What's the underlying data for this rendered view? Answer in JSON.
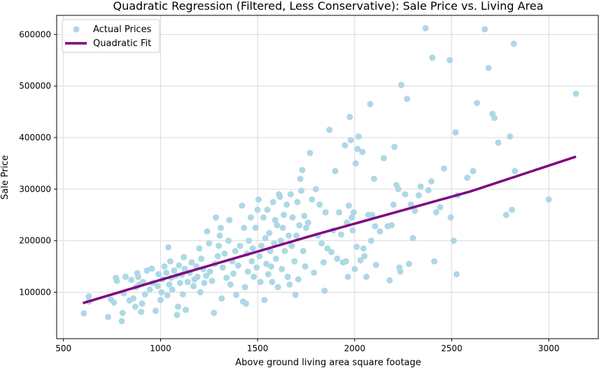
{
  "chart_data": {
    "type": "scatter",
    "title": "Quadratic Regression (Filtered, Less Conservative): Sale Price vs. Living Area",
    "xlabel": "Above ground living area square footage",
    "ylabel": "Sale Price",
    "xlim": [
      465,
      3255
    ],
    "ylim": [
      10000,
      637000
    ],
    "x_ticks": [
      500,
      1000,
      1500,
      2000,
      2500,
      3000
    ],
    "y_ticks": [
      100000,
      200000,
      300000,
      400000,
      500000,
      600000
    ],
    "x_tick_labels": [
      "500",
      "1000",
      "1500",
      "2000",
      "2500",
      "3000"
    ],
    "y_tick_labels": [
      "100000",
      "200000",
      "300000",
      "400000",
      "500000",
      "600000"
    ],
    "grid": true,
    "legend_position": "top-left",
    "series": [
      {
        "name": "Actual Prices",
        "kind": "scatter",
        "color": "#add8e6",
        "points": [
          [
            605,
            59000
          ],
          [
            630,
            92000
          ],
          [
            632,
            82000
          ],
          [
            730,
            52000
          ],
          [
            745,
            86000
          ],
          [
            760,
            80000
          ],
          [
            770,
            128000
          ],
          [
            775,
            122000
          ],
          [
            800,
            44000
          ],
          [
            805,
            60000
          ],
          [
            810,
            98000
          ],
          [
            820,
            130000
          ],
          [
            840,
            84000
          ],
          [
            850,
            124000
          ],
          [
            860,
            88000
          ],
          [
            870,
            72000
          ],
          [
            875,
            110000
          ],
          [
            880,
            137000
          ],
          [
            885,
            130000
          ],
          [
            890,
            115000
          ],
          [
            900,
            62000
          ],
          [
            905,
            78000
          ],
          [
            910,
            120000
          ],
          [
            920,
            96000
          ],
          [
            930,
            142000
          ],
          [
            945,
            105000
          ],
          [
            955,
            146000
          ],
          [
            960,
            118000
          ],
          [
            975,
            64000
          ],
          [
            985,
            112000
          ],
          [
            990,
            135000
          ],
          [
            1000,
            85000
          ],
          [
            1005,
            100000
          ],
          [
            1010,
            125000
          ],
          [
            1020,
            150000
          ],
          [
            1030,
            138000
          ],
          [
            1035,
            94000
          ],
          [
            1040,
            187000
          ],
          [
            1045,
            115000
          ],
          [
            1050,
            160000
          ],
          [
            1055,
            128000
          ],
          [
            1060,
            105000
          ],
          [
            1070,
            142000
          ],
          [
            1080,
            132000
          ],
          [
            1085,
            56000
          ],
          [
            1090,
            72000
          ],
          [
            1095,
            152000
          ],
          [
            1100,
            118000
          ],
          [
            1110,
            134000
          ],
          [
            1115,
            96000
          ],
          [
            1120,
            168000
          ],
          [
            1125,
            145000
          ],
          [
            1130,
            66000
          ],
          [
            1140,
            120000
          ],
          [
            1150,
            138000
          ],
          [
            1160,
            158000
          ],
          [
            1170,
            112000
          ],
          [
            1175,
            125000
          ],
          [
            1185,
            150000
          ],
          [
            1190,
            130000
          ],
          [
            1200,
            185000
          ],
          [
            1205,
            100000
          ],
          [
            1210,
            165000
          ],
          [
            1220,
            145000
          ],
          [
            1225,
            118000
          ],
          [
            1235,
            132000
          ],
          [
            1240,
            218000
          ],
          [
            1250,
            195000
          ],
          [
            1255,
            140000
          ],
          [
            1265,
            122000
          ],
          [
            1275,
            60000
          ],
          [
            1280,
            155000
          ],
          [
            1285,
            245000
          ],
          [
            1295,
            170000
          ],
          [
            1300,
            190000
          ],
          [
            1305,
            210000
          ],
          [
            1310,
            225000
          ],
          [
            1315,
            88000
          ],
          [
            1320,
            148000
          ],
          [
            1330,
            175000
          ],
          [
            1340,
            128000
          ],
          [
            1350,
            200000
          ],
          [
            1355,
            240000
          ],
          [
            1360,
            115000
          ],
          [
            1370,
            160000
          ],
          [
            1375,
            136000
          ],
          [
            1385,
            180000
          ],
          [
            1390,
            95000
          ],
          [
            1400,
            152000
          ],
          [
            1410,
            190000
          ],
          [
            1420,
            268000
          ],
          [
            1425,
            82000
          ],
          [
            1430,
            225000
          ],
          [
            1435,
            110000
          ],
          [
            1440,
            78000
          ],
          [
            1445,
            175000
          ],
          [
            1450,
            140000
          ],
          [
            1455,
            200000
          ],
          [
            1465,
            245000
          ],
          [
            1470,
            160000
          ],
          [
            1475,
            185000
          ],
          [
            1480,
            130000
          ],
          [
            1490,
            225000
          ],
          [
            1495,
            148000
          ],
          [
            1500,
            260000
          ],
          [
            1505,
            280000
          ],
          [
            1510,
            170000
          ],
          [
            1515,
            120000
          ],
          [
            1520,
            190000
          ],
          [
            1530,
            245000
          ],
          [
            1535,
            85000
          ],
          [
            1540,
            205000
          ],
          [
            1545,
            155000
          ],
          [
            1550,
            260000
          ],
          [
            1555,
            135000
          ],
          [
            1560,
            215000
          ],
          [
            1565,
            180000
          ],
          [
            1570,
            150000
          ],
          [
            1575,
            120000
          ],
          [
            1580,
            275000
          ],
          [
            1585,
            195000
          ],
          [
            1590,
            240000
          ],
          [
            1595,
            165000
          ],
          [
            1600,
            230000
          ],
          [
            1605,
            110000
          ],
          [
            1610,
            290000
          ],
          [
            1615,
            285000
          ],
          [
            1620,
            200000
          ],
          [
            1625,
            145000
          ],
          [
            1630,
            225000
          ],
          [
            1635,
            250000
          ],
          [
            1640,
            180000
          ],
          [
            1650,
            270000
          ],
          [
            1655,
            130000
          ],
          [
            1660,
            210000
          ],
          [
            1665,
            115000
          ],
          [
            1670,
            290000
          ],
          [
            1675,
            190000
          ],
          [
            1680,
            245000
          ],
          [
            1690,
            160000
          ],
          [
            1695,
            95000
          ],
          [
            1700,
            210000
          ],
          [
            1705,
            275000
          ],
          [
            1710,
            125000
          ],
          [
            1715,
            230000
          ],
          [
            1720,
            320000
          ],
          [
            1725,
            297000
          ],
          [
            1730,
            337000
          ],
          [
            1735,
            180000
          ],
          [
            1740,
            248000
          ],
          [
            1745,
            150000
          ],
          [
            1750,
            225000
          ],
          [
            1760,
            235000
          ],
          [
            1770,
            370000
          ],
          [
            1780,
            280000
          ],
          [
            1790,
            138000
          ],
          [
            1800,
            300000
          ],
          [
            1810,
            210000
          ],
          [
            1820,
            270000
          ],
          [
            1830,
            195000
          ],
          [
            1840,
            158000
          ],
          [
            1845,
            103000
          ],
          [
            1850,
            255000
          ],
          [
            1860,
            185000
          ],
          [
            1870,
            415000
          ],
          [
            1880,
            178000
          ],
          [
            1890,
            220000
          ],
          [
            1900,
            335000
          ],
          [
            1910,
            165000
          ],
          [
            1920,
            255000
          ],
          [
            1930,
            212000
          ],
          [
            1940,
            158000
          ],
          [
            1950,
            385000
          ],
          [
            1955,
            160000
          ],
          [
            1960,
            235000
          ],
          [
            1965,
            130000
          ],
          [
            1970,
            268000
          ],
          [
            1975,
            440000
          ],
          [
            1980,
            395000
          ],
          [
            1985,
            245000
          ],
          [
            1990,
            220000
          ],
          [
            1995,
            255000
          ],
          [
            2000,
            145000
          ],
          [
            2005,
            350000
          ],
          [
            2010,
            188000
          ],
          [
            2015,
            378000
          ],
          [
            2020,
            402000
          ],
          [
            2030,
            162000
          ],
          [
            2040,
            372000
          ],
          [
            2045,
            185000
          ],
          [
            2050,
            170000
          ],
          [
            2060,
            130000
          ],
          [
            2070,
            250000
          ],
          [
            2080,
            465000
          ],
          [
            2085,
            200000
          ],
          [
            2090,
            250000
          ],
          [
            2100,
            320000
          ],
          [
            2105,
            228000
          ],
          [
            2110,
            153000
          ],
          [
            2130,
            218000
          ],
          [
            2150,
            360000
          ],
          [
            2170,
            228000
          ],
          [
            2180,
            123000
          ],
          [
            2190,
            230000
          ],
          [
            2200,
            270000
          ],
          [
            2205,
            382000
          ],
          [
            2215,
            308000
          ],
          [
            2225,
            300000
          ],
          [
            2230,
            148000
          ],
          [
            2235,
            140000
          ],
          [
            2240,
            502000
          ],
          [
            2260,
            290000
          ],
          [
            2270,
            475000
          ],
          [
            2280,
            155000
          ],
          [
            2290,
            270000
          ],
          [
            2300,
            205000
          ],
          [
            2310,
            258000
          ],
          [
            2330,
            288000
          ],
          [
            2340,
            305000
          ],
          [
            2365,
            612000
          ],
          [
            2380,
            298000
          ],
          [
            2395,
            315000
          ],
          [
            2400,
            555000
          ],
          [
            2410,
            160000
          ],
          [
            2420,
            255000
          ],
          [
            2440,
            265000
          ],
          [
            2460,
            340000
          ],
          [
            2490,
            550000
          ],
          [
            2495,
            245000
          ],
          [
            2510,
            200000
          ],
          [
            2520,
            410000
          ],
          [
            2525,
            135000
          ],
          [
            2530,
            288000
          ],
          [
            2580,
            322000
          ],
          [
            2610,
            335000
          ],
          [
            2630,
            467000
          ],
          [
            2670,
            610000
          ],
          [
            2690,
            535000
          ],
          [
            2710,
            446000
          ],
          [
            2720,
            438000
          ],
          [
            2740,
            390000
          ],
          [
            2780,
            250000
          ],
          [
            2800,
            402000
          ],
          [
            2810,
            260000
          ],
          [
            2820,
            582000
          ],
          [
            2825,
            335000
          ],
          [
            3000,
            280000
          ],
          [
            3140,
            485000
          ]
        ]
      },
      {
        "name": "Quadratic Fit",
        "kind": "line",
        "color": "#800080",
        "x": [
          600,
          1000,
          1400,
          1800,
          2200,
          2600,
          3140
        ],
        "y": [
          79000,
          124000,
          168000,
          212000,
          254000,
          296000,
          363000
        ]
      }
    ]
  }
}
